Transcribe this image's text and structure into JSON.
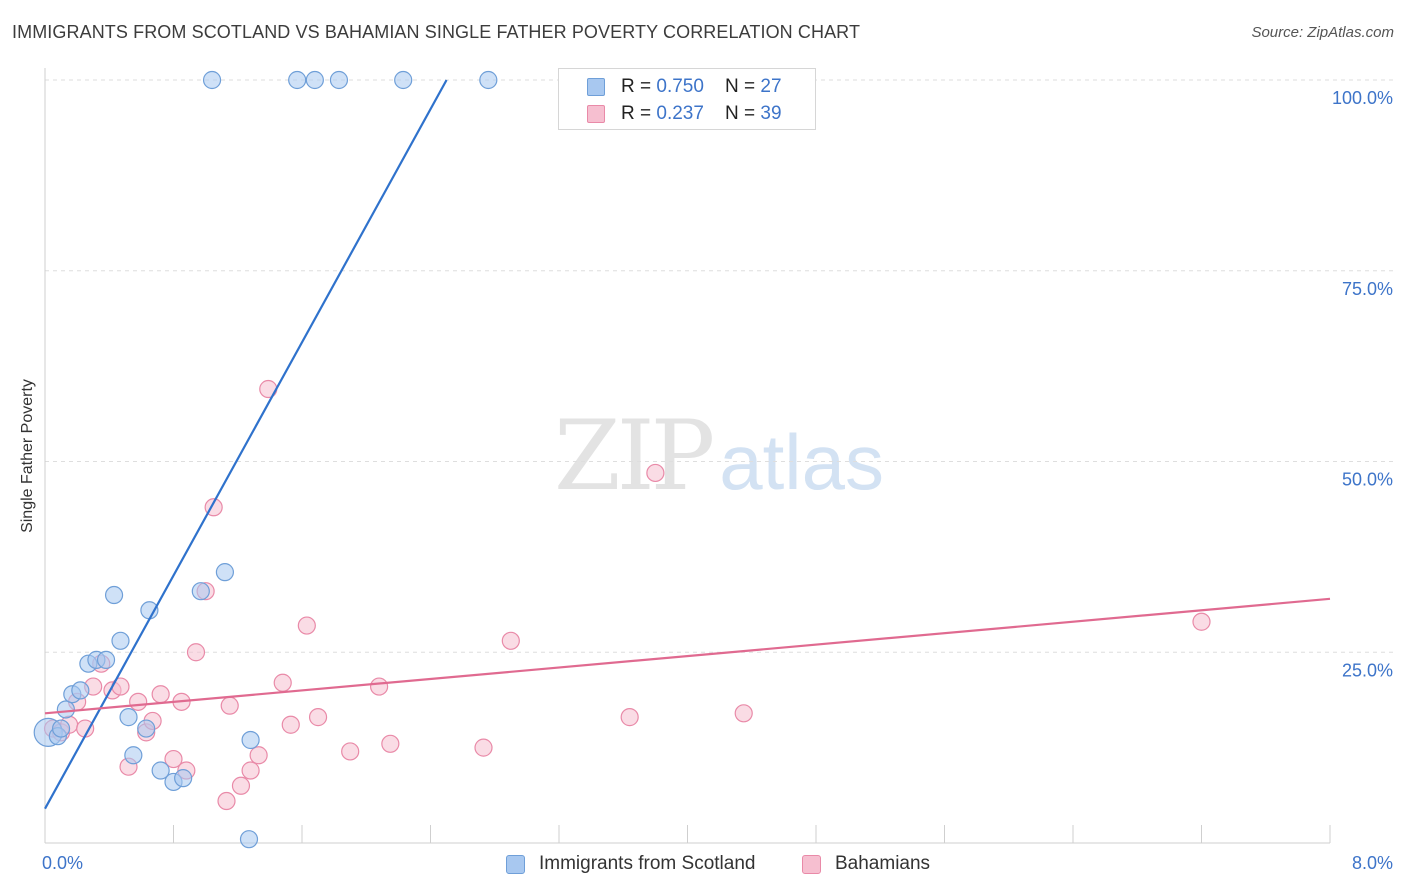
{
  "title": "IMMIGRANTS FROM SCOTLAND VS BAHAMIAN SINGLE FATHER POVERTY CORRELATION CHART",
  "source": "Source: ZipAtlas.com",
  "watermark": {
    "zip": "ZIP",
    "atlas": "atlas"
  },
  "legend": {
    "series1": {
      "r_label": "R = ",
      "r_value": "0.750",
      "n_label": "N = ",
      "n_value": "27"
    },
    "series2": {
      "r_label": "R = ",
      "r_value": "0.237",
      "n_label": "N = ",
      "n_value": "39"
    }
  },
  "bottom_legend": {
    "series1": "Immigrants from Scotland",
    "series2": "Bahamians"
  },
  "colors": {
    "blue_fill": "#a8c8f0",
    "blue_stroke": "#6f9fd8",
    "blue_line": "#2f72cc",
    "pink_fill": "#f6bfd0",
    "pink_stroke": "#e98aa8",
    "pink_line": "#e06a90",
    "axis_text": "#3d74c9",
    "grid": "#dedede"
  },
  "chart_data": {
    "type": "scatter",
    "title": "IMMIGRANTS FROM SCOTLAND VS BAHAMIAN SINGLE FATHER POVERTY CORRELATION CHART",
    "xlabel": "",
    "ylabel": "Single Father Poverty",
    "xlim": [
      0,
      8
    ],
    "ylim": [
      0,
      100
    ],
    "x_tick_labels": [
      {
        "value": 0,
        "label": "0.0%"
      },
      {
        "value": 8,
        "label": "8.0%"
      }
    ],
    "y_tick_labels": [
      {
        "value": 25,
        "label": "25.0%"
      },
      {
        "value": 50,
        "label": "50.0%"
      },
      {
        "value": 75,
        "label": "75.0%"
      },
      {
        "value": 100,
        "label": "100.0%"
      }
    ],
    "grid": true,
    "series": [
      {
        "name": "Immigrants from Scotland",
        "color": "blue",
        "r": 0.75,
        "n": 27,
        "trendline": {
          "x": [
            0,
            2.5
          ],
          "y": [
            4.5,
            100
          ]
        },
        "points": [
          {
            "x": 0.02,
            "y": 14.5,
            "big": true
          },
          {
            "x": 0.08,
            "y": 14.0
          },
          {
            "x": 0.1,
            "y": 15.0
          },
          {
            "x": 0.13,
            "y": 17.5
          },
          {
            "x": 0.17,
            "y": 19.5
          },
          {
            "x": 0.22,
            "y": 20.0
          },
          {
            "x": 0.27,
            "y": 23.5
          },
          {
            "x": 0.32,
            "y": 24.0
          },
          {
            "x": 0.38,
            "y": 24.0
          },
          {
            "x": 0.43,
            "y": 32.5
          },
          {
            "x": 0.47,
            "y": 26.5
          },
          {
            "x": 0.52,
            "y": 16.5
          },
          {
            "x": 0.55,
            "y": 11.5
          },
          {
            "x": 0.63,
            "y": 15.0
          },
          {
            "x": 0.65,
            "y": 30.5
          },
          {
            "x": 0.72,
            "y": 9.5
          },
          {
            "x": 0.8,
            "y": 8.0
          },
          {
            "x": 0.86,
            "y": 8.5
          },
          {
            "x": 0.97,
            "y": 33.0
          },
          {
            "x": 1.12,
            "y": 35.5
          },
          {
            "x": 1.28,
            "y": 13.5
          },
          {
            "x": 1.27,
            "y": 0.5
          },
          {
            "x": 1.04,
            "y": 100
          },
          {
            "x": 1.57,
            "y": 100
          },
          {
            "x": 1.68,
            "y": 100
          },
          {
            "x": 1.83,
            "y": 100
          },
          {
            "x": 2.23,
            "y": 100
          },
          {
            "x": 2.76,
            "y": 100
          }
        ]
      },
      {
        "name": "Bahamians",
        "color": "pink",
        "r": 0.237,
        "n": 39,
        "trendline": {
          "x": [
            0,
            8
          ],
          "y": [
            17.0,
            32.0
          ]
        },
        "points": [
          {
            "x": 0.05,
            "y": 15.0
          },
          {
            "x": 0.1,
            "y": 14.5
          },
          {
            "x": 0.15,
            "y": 15.5
          },
          {
            "x": 0.2,
            "y": 18.5
          },
          {
            "x": 0.25,
            "y": 15.0
          },
          {
            "x": 0.3,
            "y": 20.5
          },
          {
            "x": 0.35,
            "y": 23.5
          },
          {
            "x": 0.42,
            "y": 20.0
          },
          {
            "x": 0.47,
            "y": 20.5
          },
          {
            "x": 0.52,
            "y": 10.0
          },
          {
            "x": 0.58,
            "y": 18.5
          },
          {
            "x": 0.63,
            "y": 14.5
          },
          {
            "x": 0.67,
            "y": 16.0
          },
          {
            "x": 0.72,
            "y": 19.5
          },
          {
            "x": 0.8,
            "y": 11.0
          },
          {
            "x": 0.85,
            "y": 18.5
          },
          {
            "x": 0.88,
            "y": 9.5
          },
          {
            "x": 0.94,
            "y": 25.0
          },
          {
            "x": 1.0,
            "y": 33.0
          },
          {
            "x": 1.05,
            "y": 44.0
          },
          {
            "x": 1.13,
            "y": 5.5
          },
          {
            "x": 1.15,
            "y": 18.0
          },
          {
            "x": 1.22,
            "y": 7.5
          },
          {
            "x": 1.28,
            "y": 9.5
          },
          {
            "x": 1.33,
            "y": 11.5
          },
          {
            "x": 1.39,
            "y": 59.5
          },
          {
            "x": 1.48,
            "y": 21.0
          },
          {
            "x": 1.53,
            "y": 15.5
          },
          {
            "x": 1.63,
            "y": 28.5
          },
          {
            "x": 1.7,
            "y": 16.5
          },
          {
            "x": 1.9,
            "y": 12.0
          },
          {
            "x": 2.08,
            "y": 20.5
          },
          {
            "x": 2.15,
            "y": 13.0
          },
          {
            "x": 2.73,
            "y": 12.5
          },
          {
            "x": 2.9,
            "y": 26.5
          },
          {
            "x": 3.64,
            "y": 16.5
          },
          {
            "x": 3.8,
            "y": 48.5
          },
          {
            "x": 4.35,
            "y": 17.0
          },
          {
            "x": 7.2,
            "y": 29.0
          }
        ]
      }
    ]
  }
}
